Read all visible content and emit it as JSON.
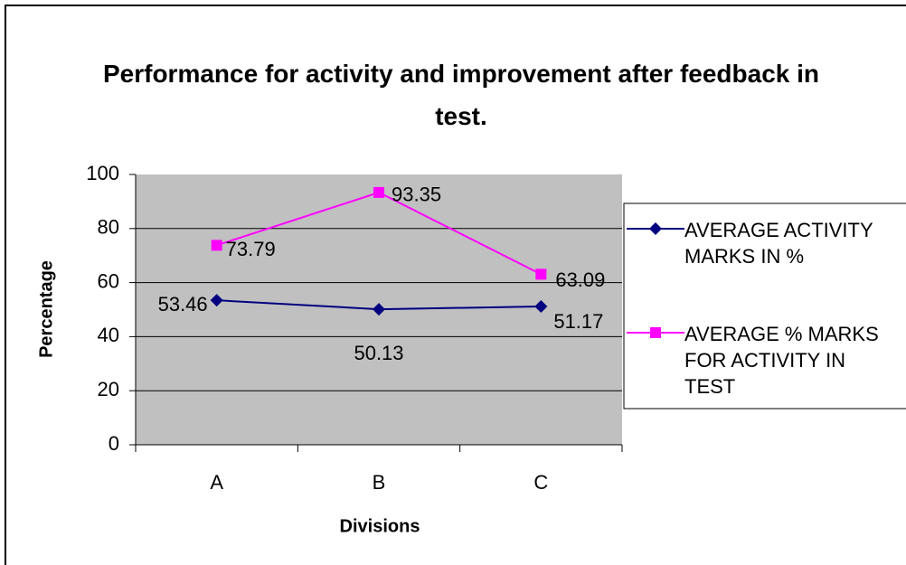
{
  "chart_data": {
    "type": "line",
    "title": "Performance for activity and improvement after feedback in test.",
    "x_label": "Divisions",
    "y_label": "Percentage",
    "categories": [
      "A",
      "B",
      "C"
    ],
    "series": [
      {
        "name": "AVERAGE ACTIVITY MARKS IN %",
        "color": "#000080",
        "marker": "diamond",
        "values": [
          53.46,
          50.13,
          51.17
        ]
      },
      {
        "name": "AVERAGE % MARKS FOR ACTIVITY IN TEST",
        "color": "#ff00ff",
        "marker": "square",
        "values": [
          73.79,
          93.35,
          63.09
        ]
      }
    ],
    "ylim": [
      0,
      100
    ],
    "yticks": [
      0,
      20,
      40,
      60,
      80,
      100
    ],
    "grid": true,
    "legend": "right"
  }
}
